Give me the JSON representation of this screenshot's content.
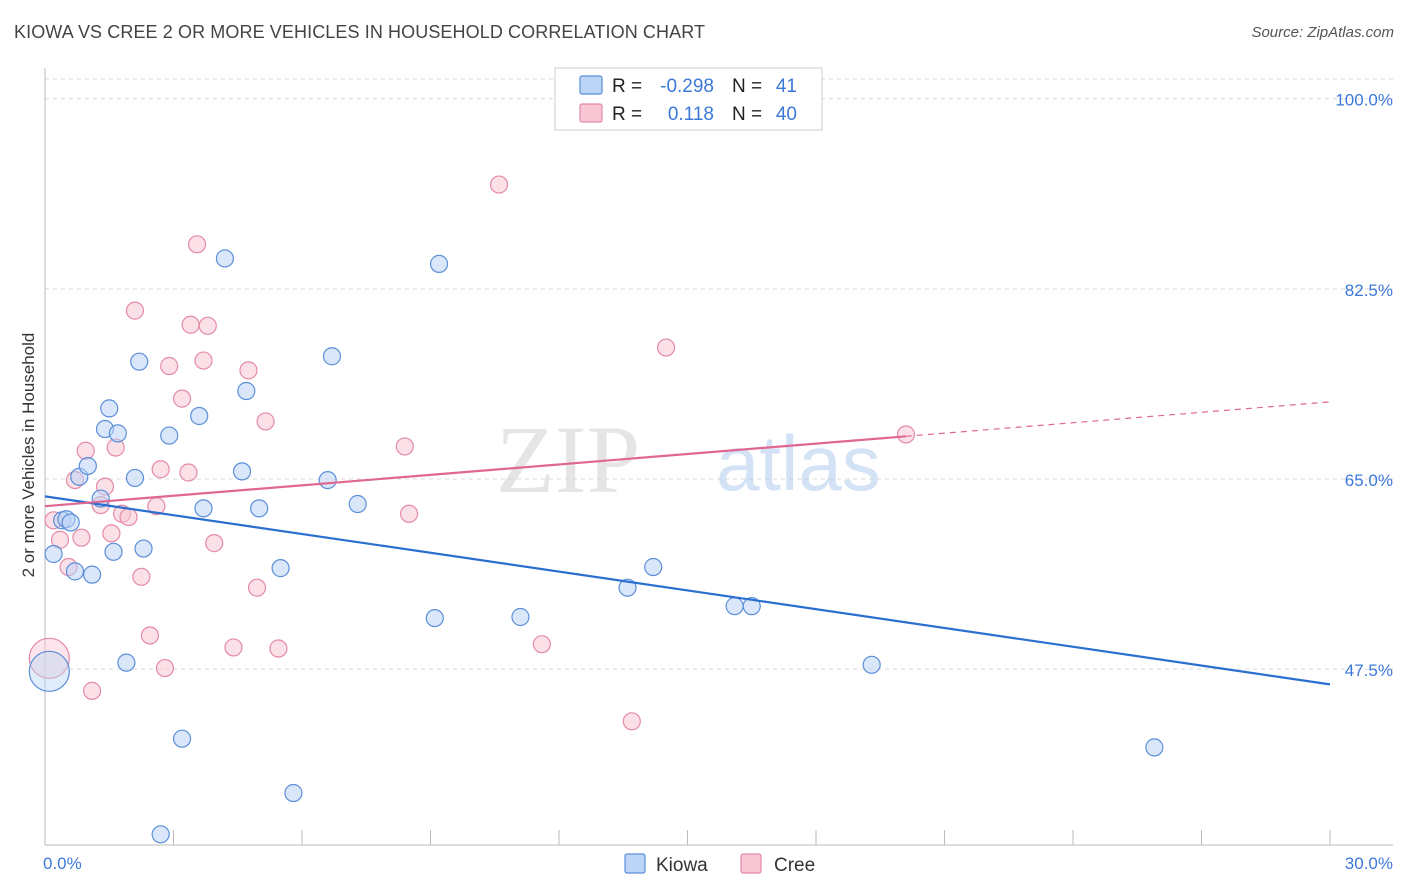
{
  "title": "KIOWA VS CREE 2 OR MORE VEHICLES IN HOUSEHOLD CORRELATION CHART",
  "source": "Source: ZipAtlas.com",
  "watermark": {
    "zip": "ZIP",
    "atlas": "atlas"
  },
  "colors": {
    "kiowa": "#5b8fd9",
    "kiowa_fill": "#bcd4f5",
    "kiowa_line": "#2a6fd0",
    "cree": "#e48aa6",
    "cree_fill": "#f8c6d4",
    "cree_line": "#e06890",
    "axis_label": "#3c78d8",
    "grid": "#d9d9d9"
  },
  "legend": {
    "rows": [
      {
        "r_label": "R =",
        "r_value": "-0.298",
        "n_label": "N =",
        "n_value": "41"
      },
      {
        "r_label": "R =",
        "r_value": "0.118",
        "n_label": "N =",
        "n_value": "40"
      }
    ]
  },
  "bottom_legend": {
    "kiowa": "Kiowa",
    "cree": "Cree"
  },
  "chart_data": {
    "type": "scatter",
    "title": "KIOWA VS CREE 2 OR MORE VEHICLES IN HOUSEHOLD CORRELATION CHART",
    "xlabel": "",
    "ylabel": "2 or more Vehicles in Household",
    "xlim": [
      0,
      30
    ],
    "ylim": [
      31.5,
      102
    ],
    "x_tick_labels": [
      "0.0%",
      "30.0%"
    ],
    "y_ticks": [
      47.5,
      65.0,
      82.5,
      100.0
    ],
    "y_tick_labels": [
      "47.5%",
      "65.0%",
      "82.5%",
      "100.0%"
    ],
    "grid": true,
    "series": [
      {
        "name": "Kiowa",
        "r": -0.298,
        "n": 41,
        "trend": {
          "x": [
            0,
            30
          ],
          "y": [
            63.4,
            46.1
          ]
        },
        "points": [
          {
            "x": 0.1,
            "y": 47.3,
            "big": true
          },
          {
            "x": 0.2,
            "y": 58.1
          },
          {
            "x": 0.4,
            "y": 61.2
          },
          {
            "x": 0.5,
            "y": 61.3
          },
          {
            "x": 0.6,
            "y": 61.0
          },
          {
            "x": 0.7,
            "y": 56.5
          },
          {
            "x": 0.8,
            "y": 65.2
          },
          {
            "x": 1.0,
            "y": 66.2
          },
          {
            "x": 1.1,
            "y": 56.2
          },
          {
            "x": 1.3,
            "y": 63.2
          },
          {
            "x": 1.4,
            "y": 69.6
          },
          {
            "x": 1.5,
            "y": 71.5
          },
          {
            "x": 1.6,
            "y": 58.3
          },
          {
            "x": 1.7,
            "y": 69.2
          },
          {
            "x": 1.9,
            "y": 48.1
          },
          {
            "x": 2.1,
            "y": 65.1
          },
          {
            "x": 2.2,
            "y": 75.8
          },
          {
            "x": 2.3,
            "y": 58.6
          },
          {
            "x": 2.7,
            "y": 32.3
          },
          {
            "x": 2.9,
            "y": 69.0
          },
          {
            "x": 3.2,
            "y": 41.1
          },
          {
            "x": 3.6,
            "y": 70.8
          },
          {
            "x": 3.7,
            "y": 62.3
          },
          {
            "x": 4.2,
            "y": 85.3
          },
          {
            "x": 4.6,
            "y": 65.7
          },
          {
            "x": 4.7,
            "y": 73.1
          },
          {
            "x": 5.0,
            "y": 62.3
          },
          {
            "x": 5.5,
            "y": 56.8
          },
          {
            "x": 5.8,
            "y": 36.1
          },
          {
            "x": 6.6,
            "y": 64.9
          },
          {
            "x": 6.7,
            "y": 76.3
          },
          {
            "x": 7.3,
            "y": 62.7
          },
          {
            "x": 9.1,
            "y": 52.2
          },
          {
            "x": 9.2,
            "y": 84.8
          },
          {
            "x": 11.1,
            "y": 52.3
          },
          {
            "x": 13.6,
            "y": 55.0
          },
          {
            "x": 14.2,
            "y": 56.9
          },
          {
            "x": 16.1,
            "y": 53.3
          },
          {
            "x": 16.5,
            "y": 53.3
          },
          {
            "x": 19.3,
            "y": 47.9
          },
          {
            "x": 25.9,
            "y": 40.3
          }
        ]
      },
      {
        "name": "Cree",
        "r": 0.118,
        "n": 40,
        "trend": {
          "x": [
            0,
            30
          ],
          "y": [
            62.5,
            72.1
          ],
          "solid_to_x": 20.1
        },
        "points": [
          {
            "x": 0.1,
            "y": 48.5,
            "big": true
          },
          {
            "x": 0.2,
            "y": 61.2
          },
          {
            "x": 0.35,
            "y": 59.4
          },
          {
            "x": 0.55,
            "y": 56.9
          },
          {
            "x": 0.7,
            "y": 64.9
          },
          {
            "x": 0.85,
            "y": 59.6
          },
          {
            "x": 0.95,
            "y": 67.6
          },
          {
            "x": 1.1,
            "y": 45.5
          },
          {
            "x": 1.3,
            "y": 62.6
          },
          {
            "x": 1.4,
            "y": 64.3
          },
          {
            "x": 1.55,
            "y": 60.0
          },
          {
            "x": 1.65,
            "y": 67.9
          },
          {
            "x": 1.8,
            "y": 61.8
          },
          {
            "x": 1.95,
            "y": 61.5
          },
          {
            "x": 2.1,
            "y": 80.5
          },
          {
            "x": 2.25,
            "y": 56.0
          },
          {
            "x": 2.45,
            "y": 50.6
          },
          {
            "x": 2.6,
            "y": 62.5
          },
          {
            "x": 2.7,
            "y": 65.9
          },
          {
            "x": 2.8,
            "y": 47.6
          },
          {
            "x": 2.9,
            "y": 75.4
          },
          {
            "x": 3.2,
            "y": 72.4
          },
          {
            "x": 3.35,
            "y": 65.6
          },
          {
            "x": 3.4,
            "y": 79.2
          },
          {
            "x": 3.55,
            "y": 86.6
          },
          {
            "x": 3.7,
            "y": 75.9
          },
          {
            "x": 3.8,
            "y": 79.1
          },
          {
            "x": 3.95,
            "y": 59.1
          },
          {
            "x": 4.4,
            "y": 49.5
          },
          {
            "x": 4.75,
            "y": 75.0
          },
          {
            "x": 4.95,
            "y": 55.0
          },
          {
            "x": 5.15,
            "y": 70.3
          },
          {
            "x": 5.45,
            "y": 49.4
          },
          {
            "x": 8.4,
            "y": 68.0
          },
          {
            "x": 8.5,
            "y": 61.8
          },
          {
            "x": 10.6,
            "y": 92.1
          },
          {
            "x": 11.6,
            "y": 49.8
          },
          {
            "x": 13.7,
            "y": 42.7
          },
          {
            "x": 14.5,
            "y": 77.1
          },
          {
            "x": 20.1,
            "y": 69.1
          }
        ]
      }
    ]
  }
}
